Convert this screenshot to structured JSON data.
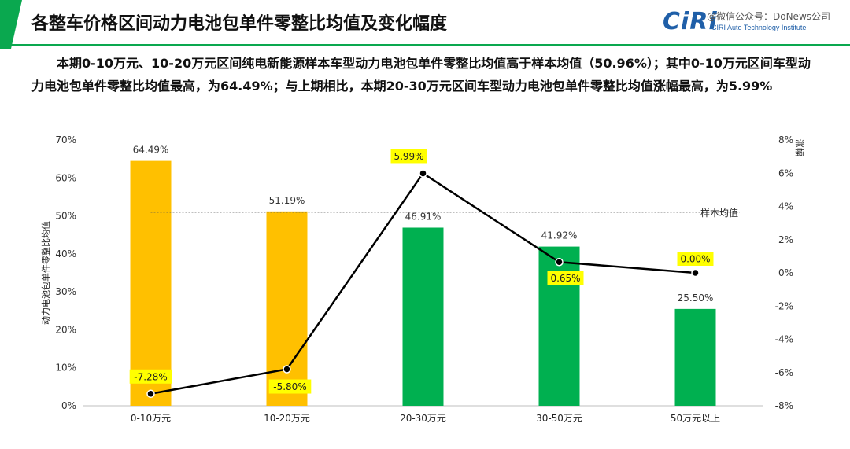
{
  "header": {
    "title": "各整车价格区间动力电池包单件零整比均值及变化幅度",
    "logo_text": "CiRi",
    "logo_sub": "CIRI Auto Technology Institute",
    "watermark": "@微信公众号：DoNews公司"
  },
  "description": "本期0-10万元、10-20万元区间纯电新能源样本车型动力电池包单件零整比均值高于样本均值（50.96%）；其中0-10万元区间车型动力电池包单件零整比均值最高，为64.49%；与上期相比，本期20-30万元区间车型动力电池包单件零整比均值涨幅最高，为5.99%",
  "chart_data": {
    "type": "bar+line",
    "categories": [
      "0-10万元",
      "10-20万元",
      "20-30万元",
      "30-50万元",
      "50万元以上"
    ],
    "series": [
      {
        "name": "动力电池包单件零整比均值",
        "type": "bar",
        "axis": "left",
        "values": [
          64.49,
          51.19,
          46.91,
          41.92,
          25.5
        ],
        "labels": [
          "64.49%",
          "51.19%",
          "46.91%",
          "41.92%",
          "25.50%"
        ],
        "colors": [
          "#ffc000",
          "#ffc000",
          "#00b050",
          "#00b050",
          "#00b050"
        ]
      },
      {
        "name": "涨幅",
        "type": "line",
        "axis": "right",
        "values": [
          -7.28,
          -5.8,
          5.99,
          0.65,
          0.0
        ],
        "labels": [
          "-7.28%",
          "-5.80%",
          "5.99%",
          "0.65%",
          "0.00%"
        ],
        "color": "#000000"
      }
    ],
    "reference_line": {
      "label": "样本均值",
      "value": 50.96
    },
    "ylabel_left": "动力电池包单件零整比均值",
    "ylabel_right": "涨幅",
    "ylim_left": [
      0,
      70
    ],
    "ylim_right": [
      -8,
      8
    ],
    "yticks_left": [
      "0%",
      "10%",
      "20%",
      "30%",
      "40%",
      "50%",
      "60%",
      "70%"
    ],
    "yticks_right": [
      "-8%",
      "-6%",
      "-4%",
      "-2%",
      "0%",
      "2%",
      "4%",
      "6%",
      "8%"
    ],
    "label_highlight_color": "#ffff00"
  }
}
